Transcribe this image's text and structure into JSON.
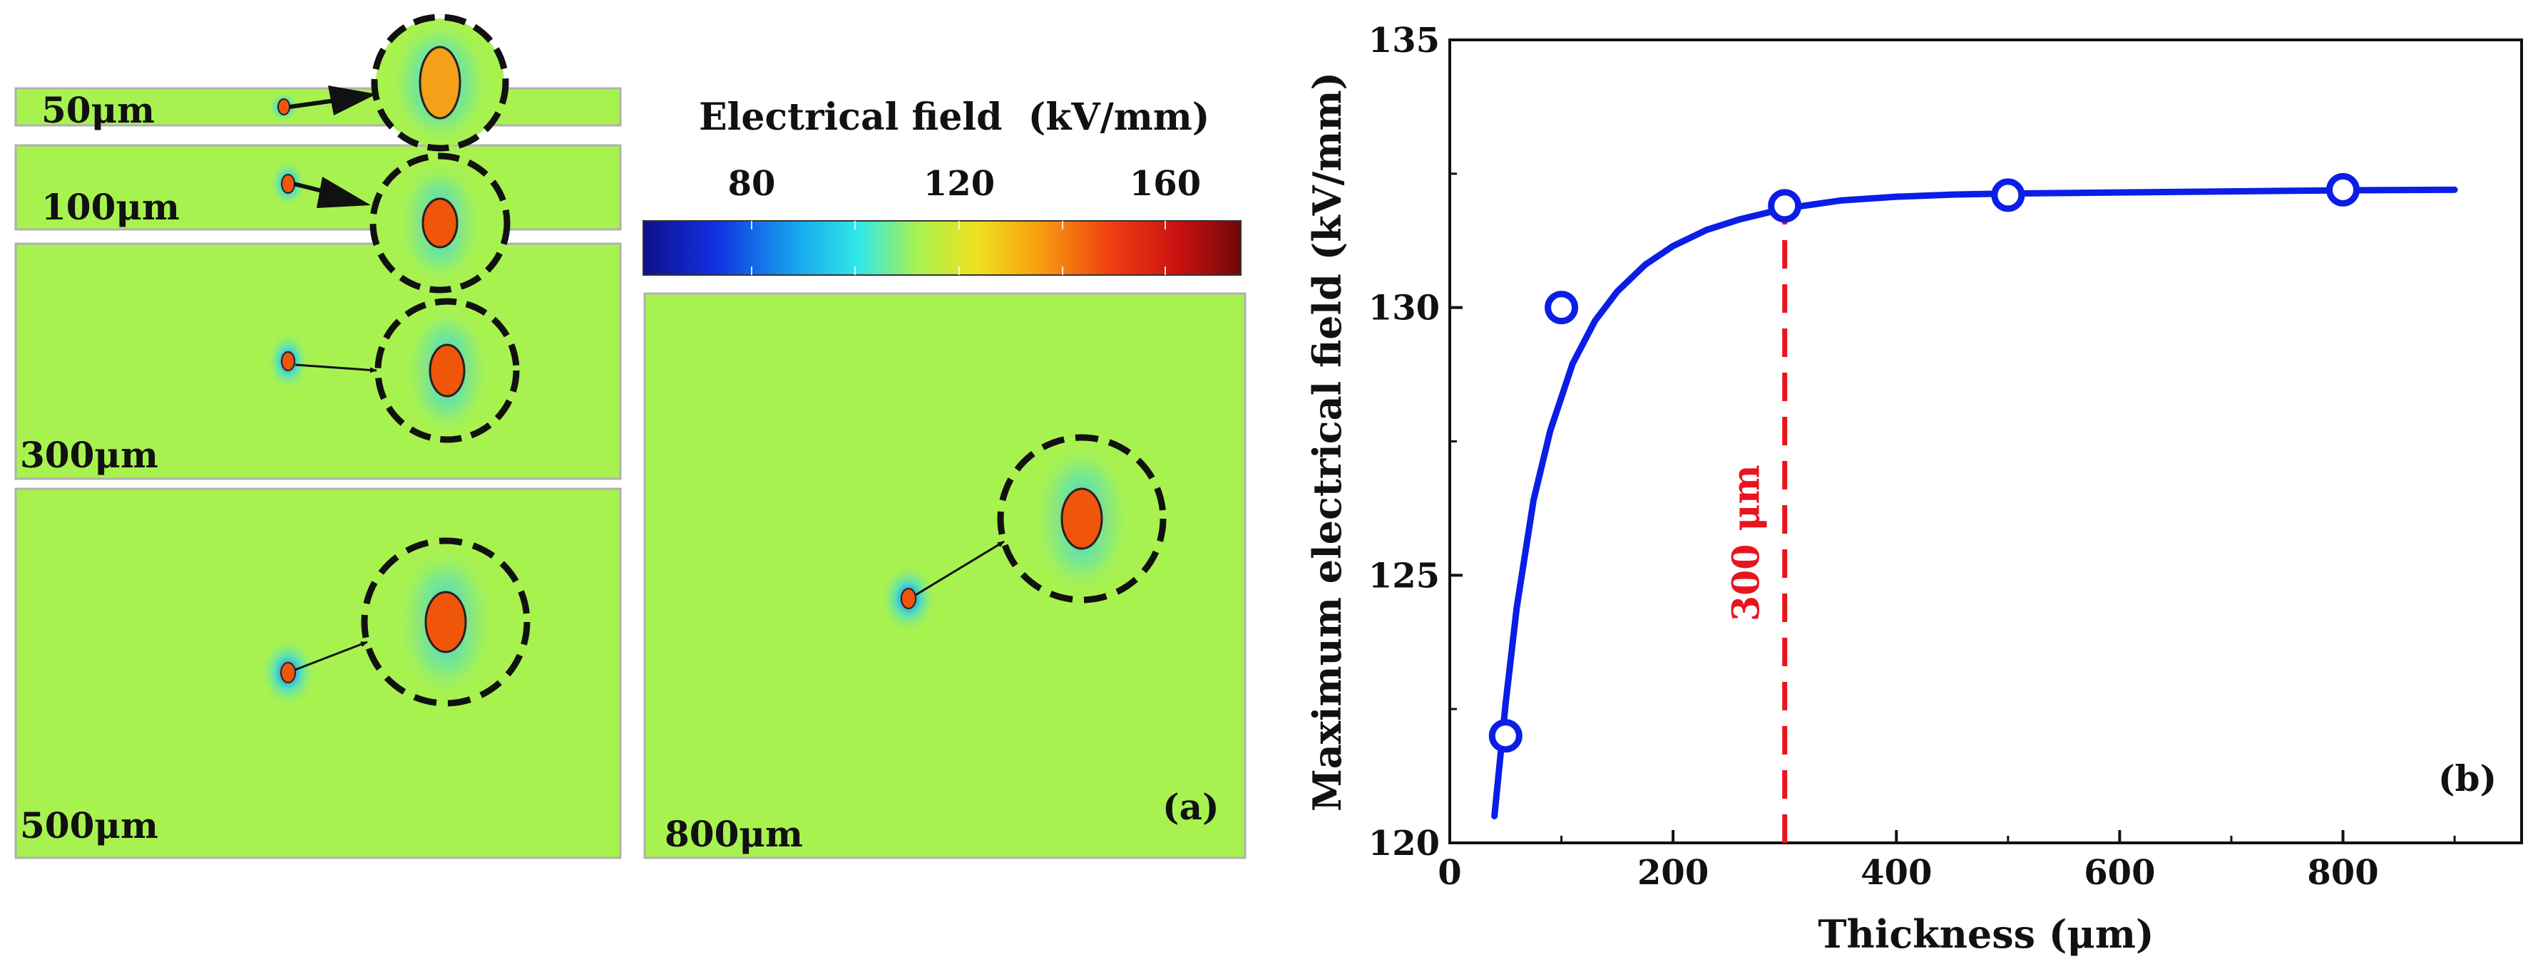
{
  "panel_a": {
    "colorbar": {
      "title": "Electrical field  (kV/mm)",
      "ticks": [
        "80",
        "120",
        "160"
      ]
    },
    "thickness_labels": [
      "50μm",
      "100μm",
      "300μm",
      "500μm",
      "800μm"
    ],
    "panel_label": "(a)",
    "colors": {
      "background_field": "#a8f250",
      "inclusion": "#f0560a",
      "inclusion_small_zoom": "#f4a018"
    }
  },
  "chart_data": {
    "type": "scatter",
    "title": "",
    "xlabel": "Thickness (μm)",
    "ylabel": "Maximum electrical field (kV/mm)",
    "xlim": [
      0,
      960
    ],
    "ylim": [
      120,
      135
    ],
    "xticks": [
      0,
      200,
      400,
      600,
      800
    ],
    "yticks": [
      120,
      125,
      130,
      135
    ],
    "grid": false,
    "legend": "none",
    "panel_label": "(b)",
    "series": [
      {
        "type": "scatter",
        "marker": "open-circle",
        "color": "#0a1ee6",
        "x": [
          50,
          100,
          300,
          500,
          800
        ],
        "y": [
          122,
          130,
          131.9,
          132.1,
          132.2
        ]
      },
      {
        "type": "line",
        "color": "#0a1ee6",
        "x": [
          40,
          50,
          60,
          75,
          90,
          110,
          130,
          150,
          175,
          200,
          230,
          260,
          300,
          350,
          400,
          450,
          500,
          600,
          700,
          800,
          900
        ],
        "y": [
          120.5,
          122.6,
          124.4,
          126.4,
          127.7,
          128.95,
          129.75,
          130.3,
          130.8,
          131.15,
          131.45,
          131.65,
          131.85,
          132.0,
          132.07,
          132.11,
          132.13,
          132.15,
          132.17,
          132.19,
          132.2
        ]
      }
    ],
    "annotations": [
      {
        "type": "vline",
        "x": 300,
        "y_from": 120,
        "y_to": 131.9,
        "color": "#e8141e",
        "label": "300 μm"
      }
    ]
  }
}
